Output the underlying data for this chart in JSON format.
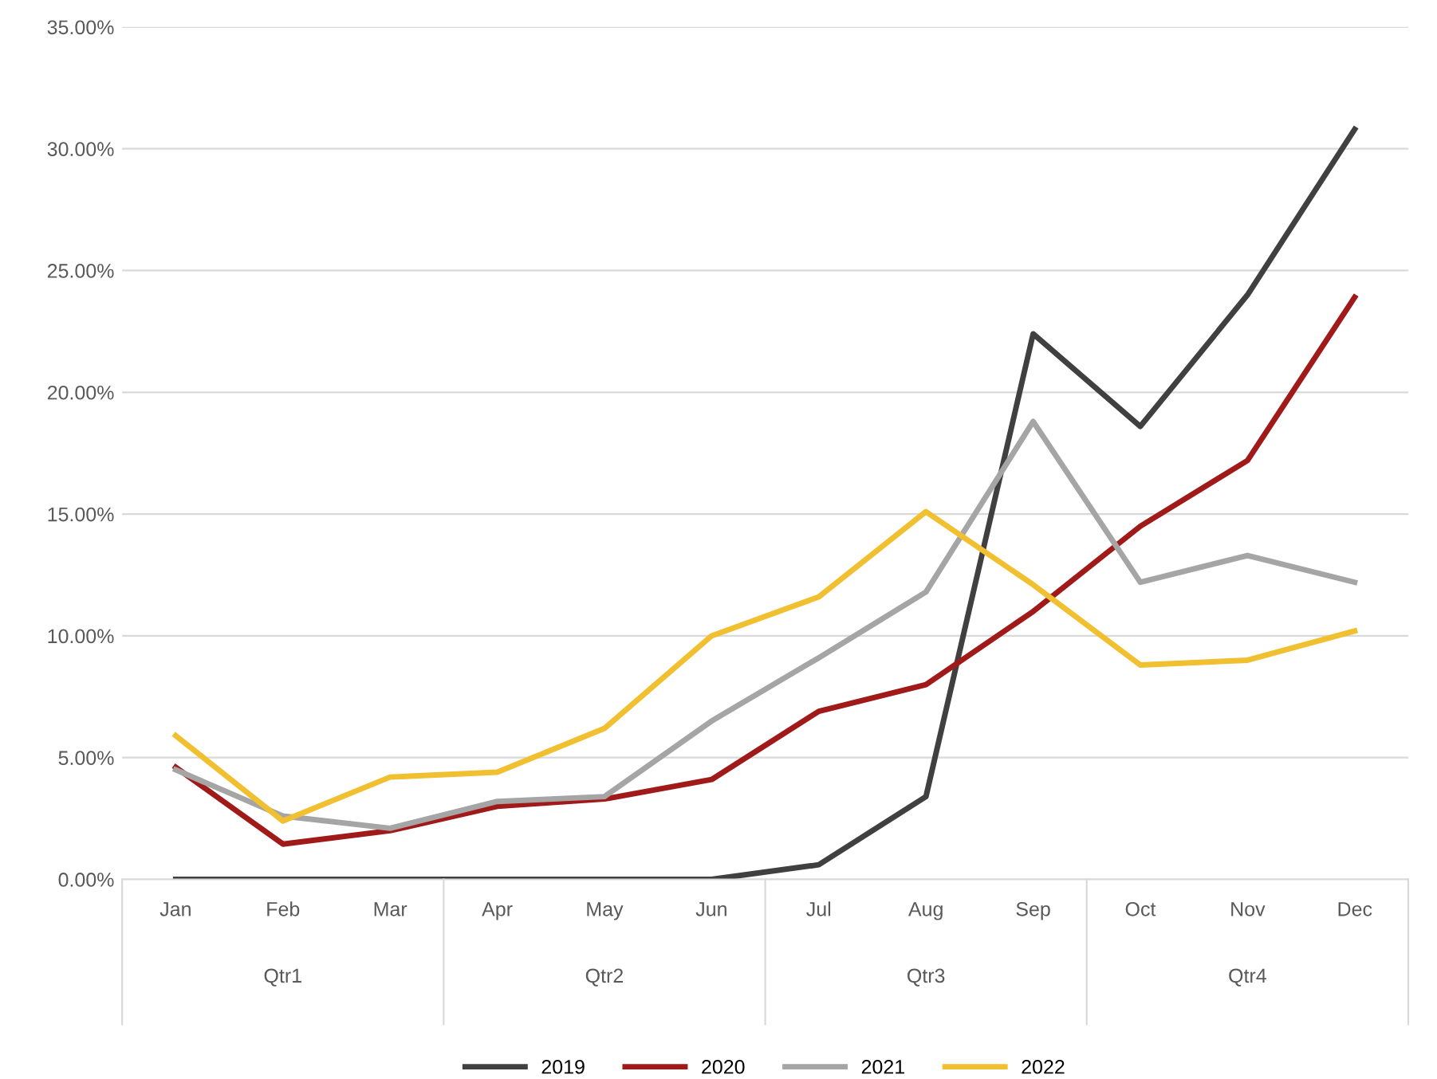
{
  "chart_data": {
    "type": "line",
    "categories": [
      "Jan",
      "Feb",
      "Mar",
      "Apr",
      "May",
      "Jun",
      "Jul",
      "Aug",
      "Sep",
      "Oct",
      "Nov",
      "Dec"
    ],
    "series": [
      {
        "name": "2019",
        "color": "#404040",
        "values": [
          0,
          0,
          0,
          0,
          0,
          0,
          0.6,
          3.4,
          22.4,
          18.6,
          24.0,
          30.8
        ]
      },
      {
        "name": "2020",
        "color": "#a11a1a",
        "values": [
          4.6,
          1.45,
          2.0,
          3.0,
          3.3,
          4.1,
          6.9,
          8.0,
          11.0,
          14.5,
          17.2,
          23.9
        ]
      },
      {
        "name": "2021",
        "color": "#a5a5a5",
        "values": [
          4.5,
          2.6,
          2.1,
          3.2,
          3.4,
          6.5,
          9.1,
          11.8,
          18.8,
          12.2,
          13.3,
          12.2
        ]
      },
      {
        "name": "2022",
        "color": "#f0c030",
        "values": [
          5.9,
          2.4,
          4.2,
          4.4,
          6.2,
          10.0,
          11.6,
          15.1,
          12.1,
          8.8,
          9.0,
          10.2
        ]
      }
    ],
    "annotations": [
      "Qtr1",
      "Qtr2",
      "Qtr3",
      "Qtr4"
    ],
    "ylim": [
      0,
      35
    ],
    "yticks": [
      {
        "value": 0,
        "label": "0.00%"
      },
      {
        "value": 5,
        "label": "5.00%"
      },
      {
        "value": 10,
        "label": "10.00%"
      },
      {
        "value": 15,
        "label": "15.00%"
      },
      {
        "value": 20,
        "label": "20.00%"
      },
      {
        "value": 25,
        "label": "25.00%"
      },
      {
        "value": 30,
        "label": "30.00%"
      },
      {
        "value": 35,
        "label": "35.00%"
      }
    ],
    "grid": "y",
    "legend": "bottom",
    "marker": "none",
    "line_style": "solid"
  }
}
